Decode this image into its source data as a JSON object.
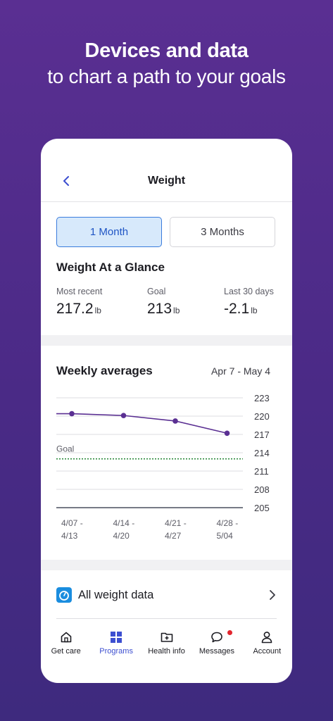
{
  "promo": {
    "title": "Devices and data",
    "subtitle": "to chart a path to your goals"
  },
  "nav": {
    "title": "Weight",
    "back_icon": "chevron-left-icon"
  },
  "segments": [
    {
      "label": "1 Month",
      "selected": true
    },
    {
      "label": "3 Months",
      "selected": false
    }
  ],
  "glance": {
    "title": "Weight At a Glance",
    "stats": [
      {
        "label": "Most recent",
        "value": "217.2",
        "unit": "lb"
      },
      {
        "label": "Goal",
        "value": "213",
        "unit": "lb"
      },
      {
        "label": "Last 30 days",
        "value": "-2.1",
        "unit": "lb"
      }
    ]
  },
  "chart": {
    "title": "Weekly averages",
    "range": "Apr 7 - May 4"
  },
  "chart_data": {
    "type": "line",
    "title": "Weekly averages",
    "categories": [
      "4/07 - 4/13",
      "4/14 - 4/20",
      "4/21 - 4/27",
      "4/28 - 5/04"
    ],
    "x_label_lines": [
      [
        "4/07 -",
        "4/13"
      ],
      [
        "4/14 -",
        "4/20"
      ],
      [
        "4/21 -",
        "4/27"
      ],
      [
        "4/28 -",
        "5/04"
      ]
    ],
    "series": [
      {
        "values": [
          220.4,
          220.1,
          219.2,
          217.2
        ]
      }
    ],
    "goal": {
      "label": "Goal",
      "value": 213
    },
    "yticks": [
      223,
      220,
      217,
      214,
      211,
      208,
      205
    ],
    "ylim": [
      205,
      223
    ],
    "colors": {
      "line": "#5a2f92",
      "goal": "#2e8b3e",
      "grid": "#dcdce0",
      "baseline": "#4a4f5e"
    }
  },
  "all_data": {
    "label": "All weight data",
    "icon": "scale-icon"
  },
  "tabs": [
    {
      "label": "Get care",
      "icon": "home-icon",
      "active": false
    },
    {
      "label": "Programs",
      "icon": "grid-icon",
      "active": true
    },
    {
      "label": "Health info",
      "icon": "folder-plus-icon",
      "active": false
    },
    {
      "label": "Messages",
      "icon": "chat-icon",
      "active": false,
      "badge": true
    },
    {
      "label": "Account",
      "icon": "person-icon",
      "active": false
    }
  ],
  "colors": {
    "accent": "#3d4fd0",
    "background": "#4a2a86"
  }
}
